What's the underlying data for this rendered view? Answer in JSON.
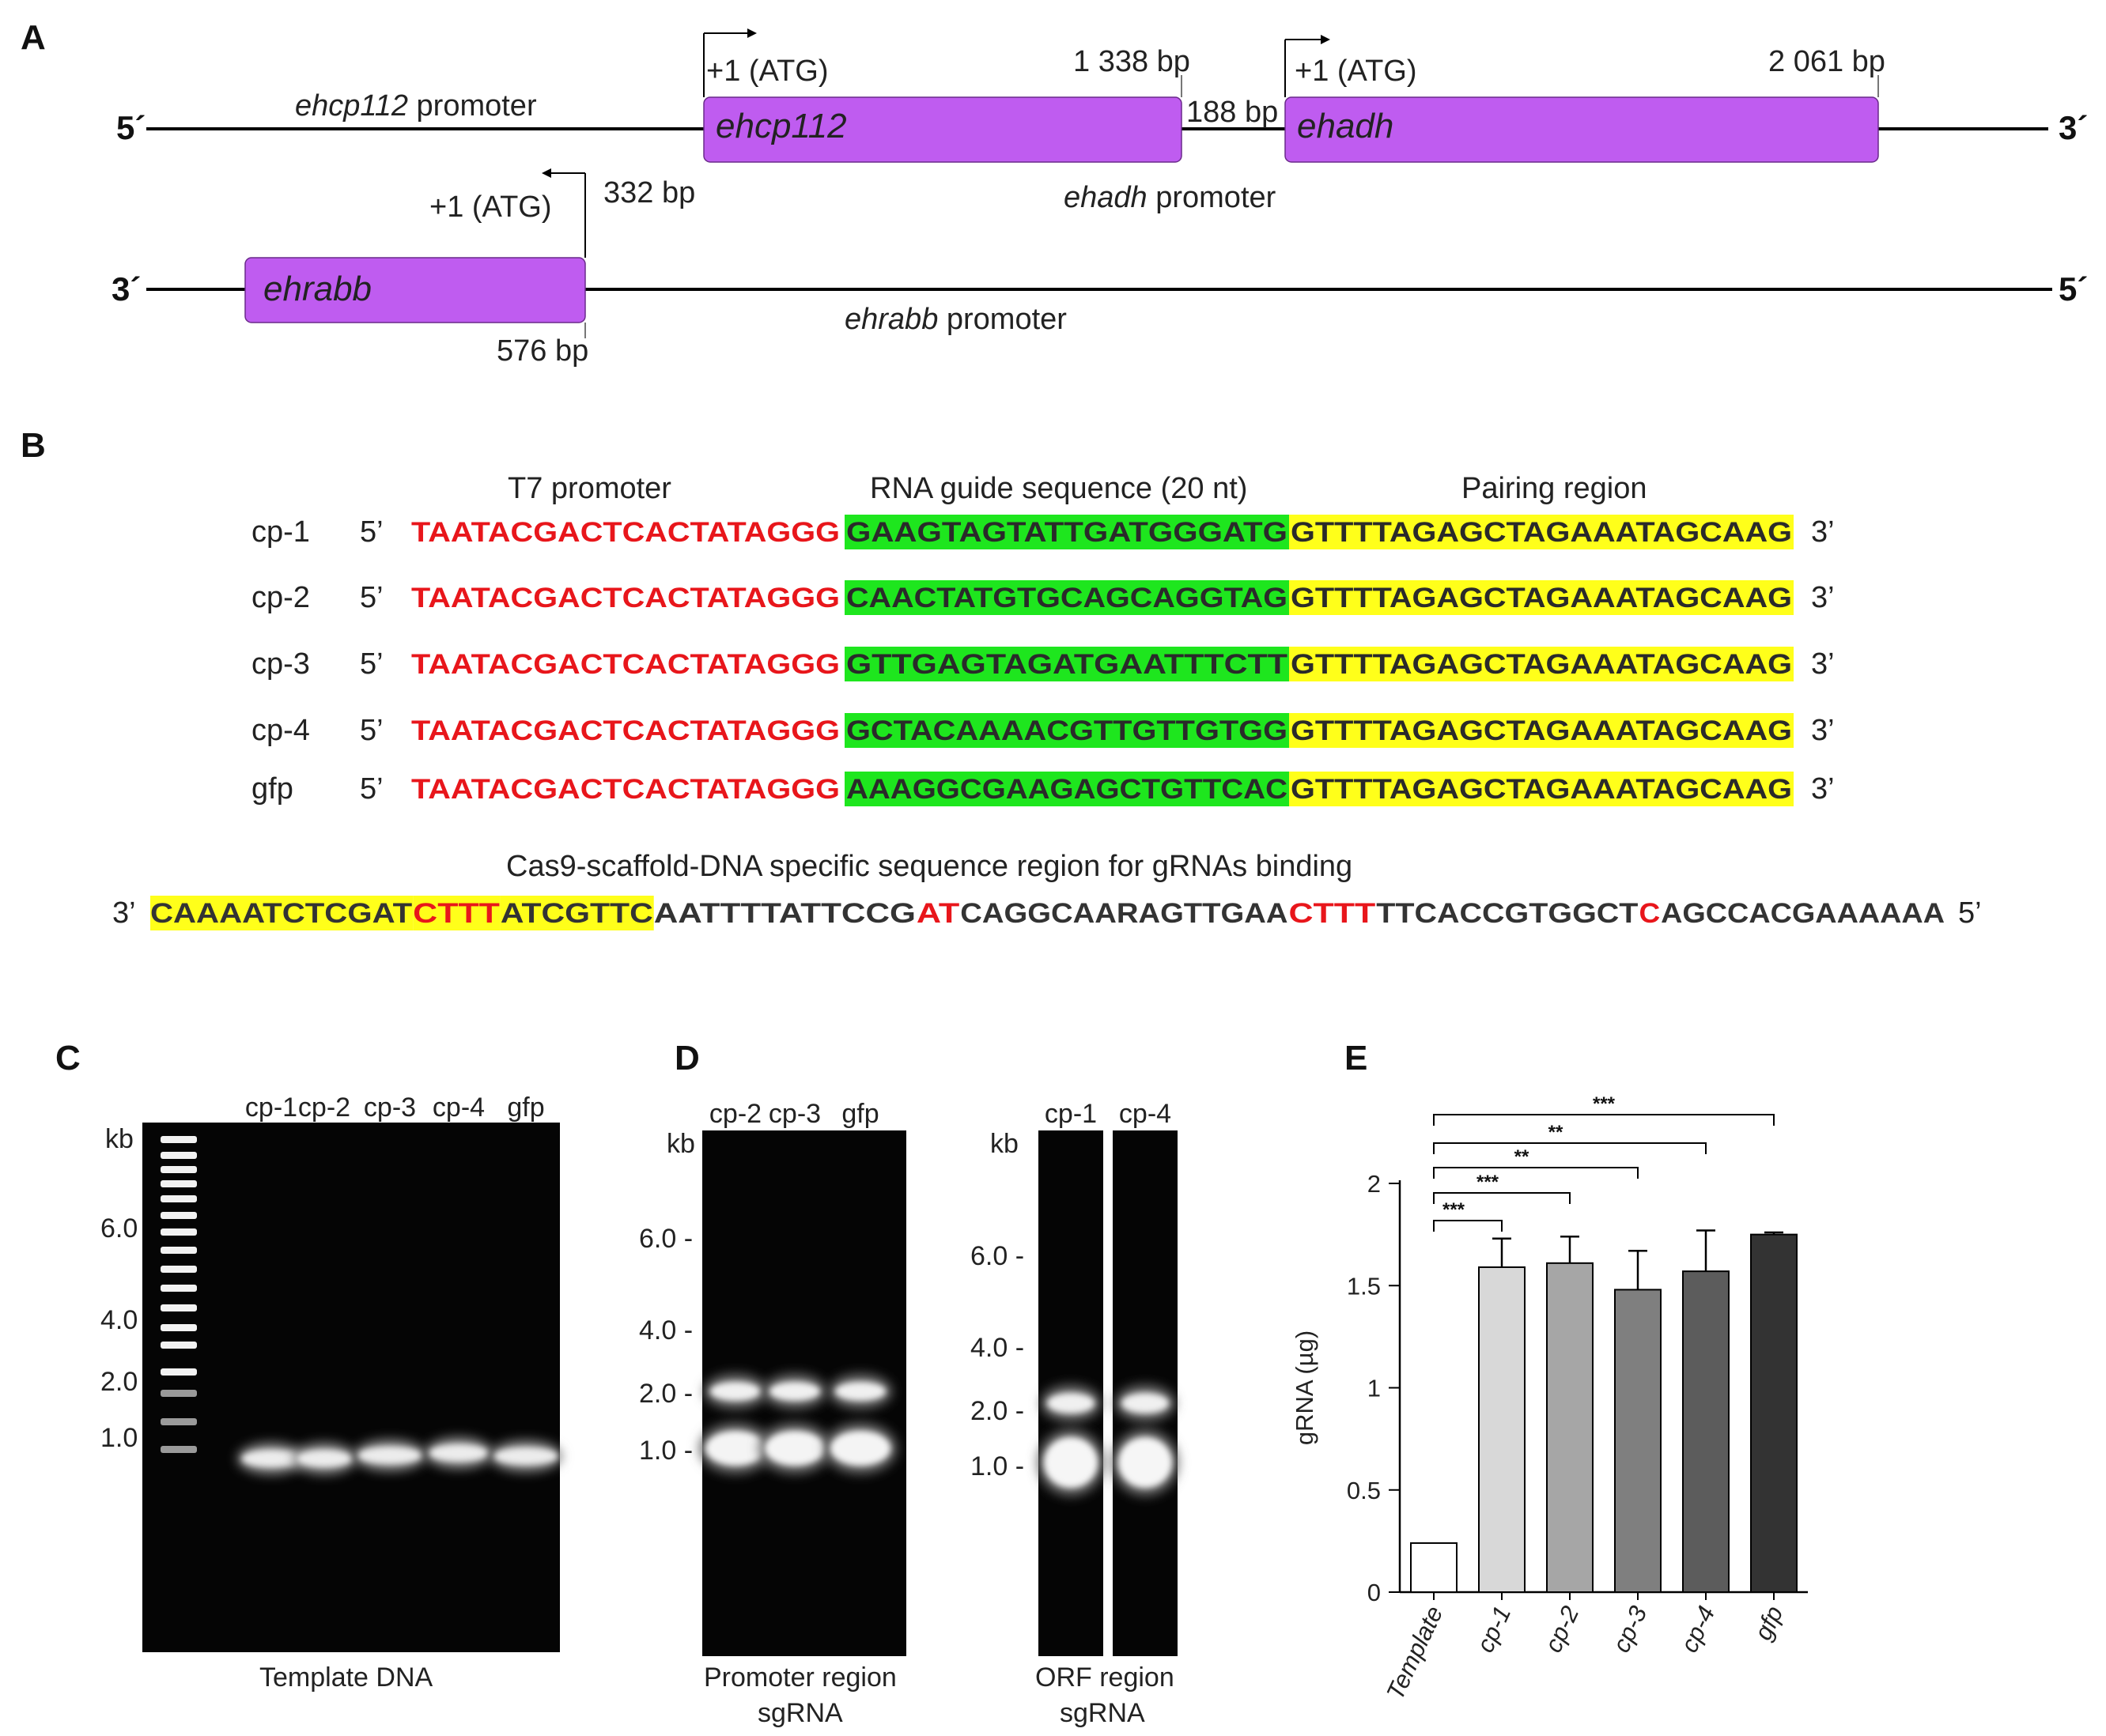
{
  "panels": {
    "A": "A",
    "B": "B",
    "C": "C",
    "D": "D",
    "E": "E"
  },
  "panel_a": {
    "top_strand_left": "5´",
    "top_strand_right": "3´",
    "bottom_strand_left": "3´",
    "bottom_strand_right": "5´",
    "ehcp112_promoter_italic": "ehcp112",
    "ehcp112_promoter_text": " promoter",
    "ehcp112_start": "+1 (ATG)",
    "ehcp112_gene": "ehcp112",
    "ehcp112_end": "1 338 bp",
    "intergenic": "188 bp",
    "ehadh_start": "+1 (ATG)",
    "ehadh_gene": "ehadh",
    "ehadh_end": "2 061 bp",
    "ehadh_promoter_italic": "ehadh",
    "ehadh_promoter_text": " promoter",
    "ehrabb_start": "+1 (ATG)",
    "ehrabb_start_bp": "332 bp",
    "ehrabb_gene": "ehrabb",
    "ehrabb_end": "576 bp",
    "ehrabb_promoter_italic": "ehrabb",
    "ehrabb_promoter_text": " promoter",
    "gene_color": "#bf5cf0"
  },
  "panel_b": {
    "header_t7": "T7 promoter",
    "header_guide": "RNA guide sequence (20 nt)",
    "header_pairing": "Pairing region",
    "five_prime": "5’",
    "three_prime": "3’",
    "rows": [
      {
        "name": "cp-1",
        "t7": "TAATACGACTCACTATAGGG",
        "guide": "GAAGTAGTATTGATGGGATG",
        "pairing": "GTTTTAGAGCTAGAAATAGCAAG"
      },
      {
        "name": "cp-2",
        "t7": "TAATACGACTCACTATAGGG",
        "guide": "CAACTATGTGCAGCAGGTAG",
        "pairing": "GTTTTAGAGCTAGAAATAGCAAG"
      },
      {
        "name": "cp-3",
        "t7": "TAATACGACTCACTATAGGG",
        "guide": "GTTGAGTAGATGAATTTCTT",
        "pairing": "GTTTTAGAGCTAGAAATAGCAAG"
      },
      {
        "name": "cp-4",
        "t7": "TAATACGACTCACTATAGGG",
        "guide": "GCTACAAAACGTTGTTGTGG",
        "pairing": "GTTTTAGAGCTAGAAATAGCAAG"
      },
      {
        "name": "gfp",
        "t7": "TAATACGACTCACTATAGGG",
        "guide": "AAAGGCGAAGAGCTGTTCAC",
        "pairing": "GTTTTAGAGCTAGAAATAGCAAG"
      }
    ],
    "scaffold_title": "Cas9-scaffold-DNA specific sequence region for gRNAs binding",
    "scaffold_left": "3’",
    "scaffold_right": "5’",
    "scaffold_segments": [
      {
        "text": "CAAAATCTCGAT",
        "color": "#333333",
        "highlight": true
      },
      {
        "text": "CTTT",
        "color": "#e8161b",
        "highlight": true
      },
      {
        "text": "ATCGTTC",
        "color": "#333333",
        "highlight": true
      },
      {
        "text": "AATTTTATTCCG",
        "color": "#333333",
        "highlight": false
      },
      {
        "text": "AT",
        "color": "#e8161b",
        "highlight": false
      },
      {
        "text": "CAGGCAARAGTTGAA",
        "color": "#333333",
        "highlight": false
      },
      {
        "text": "CTTT",
        "color": "#e8161b",
        "highlight": false
      },
      {
        "text": "TTCACCGTGGCT",
        "color": "#333333",
        "highlight": false
      },
      {
        "text": "C",
        "color": "#e8161b",
        "highlight": false
      },
      {
        "text": "AGCCACGAAAAAA",
        "color": "#333333",
        "highlight": false
      }
    ],
    "colors": {
      "t7": "#e8161b",
      "guide_bg": "#1ee61e",
      "guide_header": "#2e8b2e",
      "pairing_bg": "#ffff1a"
    }
  },
  "panel_c": {
    "lanes": [
      "cp-1",
      "cp-2",
      "cp-3",
      "cp-4",
      "gfp"
    ],
    "unit": "kb",
    "markers": [
      "6.0",
      "4.0",
      "2.0",
      "1.0"
    ],
    "caption": "Template DNA"
  },
  "panel_d": {
    "left_lanes": [
      "cp-2",
      "cp-3",
      "gfp"
    ],
    "right_lanes": [
      "cp-1",
      "cp-4"
    ],
    "unit": "kb",
    "markers": [
      "6.0 -",
      "4.0 -",
      "2.0 -",
      "1.0 -"
    ],
    "left_caption_1": "Promoter region",
    "left_caption_2": "sgRNA",
    "right_caption_1": "ORF region",
    "right_caption_2": "sgRNA"
  },
  "chart_data": {
    "type": "bar",
    "categories": [
      "Template",
      "cp-1",
      "cp-2",
      "cp-3",
      "cp-4",
      "gfp"
    ],
    "values": [
      0.24,
      1.59,
      1.61,
      1.48,
      1.57,
      1.75
    ],
    "errors": [
      0,
      0.14,
      0.13,
      0.19,
      0.2,
      0.01
    ],
    "fill_colors": [
      "#ffffff",
      "#d8d8d8",
      "#a6a6a6",
      "#7f7f7f",
      "#5c5c5c",
      "#333333"
    ],
    "ylabel": "gRNA  (µg)",
    "ylim": [
      0,
      2
    ],
    "yticks": [
      "0",
      "0.5",
      "1",
      "1.5",
      "2"
    ],
    "significance": [
      {
        "from": "Template",
        "to": "cp-1",
        "label": "***"
      },
      {
        "from": "Template",
        "to": "cp-2",
        "label": "***"
      },
      {
        "from": "Template",
        "to": "cp-3",
        "label": "**"
      },
      {
        "from": "Template",
        "to": "cp-4",
        "label": "**"
      },
      {
        "from": "Template",
        "to": "gfp",
        "label": "***"
      }
    ]
  }
}
